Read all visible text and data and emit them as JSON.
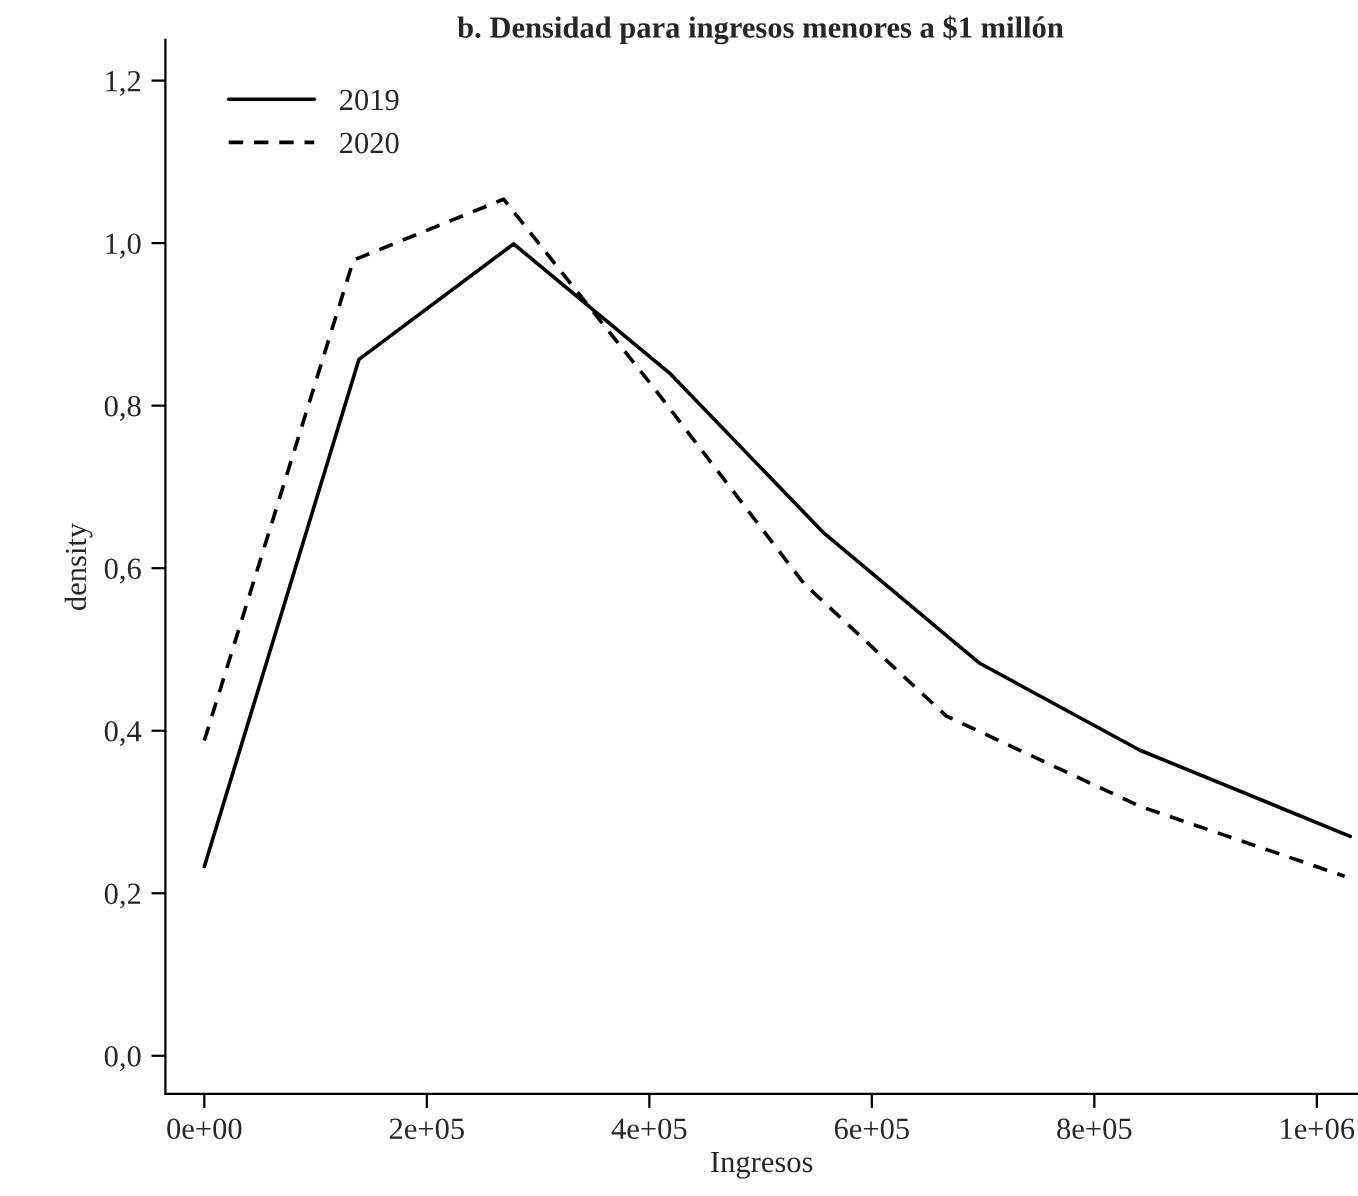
{
  "chart_data": {
    "type": "line",
    "title": "b. Densidad para ingresos menores a $1 millón",
    "xlabel": "Ingresos",
    "ylabel": "density",
    "series": [
      {
        "name": "2019",
        "color": "#000000",
        "line_style": "solid",
        "x": [
          0,
          139000,
          278000,
          419000,
          557000,
          697000,
          841000,
          1030000
        ],
        "values": [
          0.233,
          0.857,
          0.999,
          0.839,
          0.643,
          0.483,
          0.376,
          0.27
        ]
      },
      {
        "name": "2020",
        "color": "#000000",
        "line_style": "dashed",
        "x": [
          0,
          134000,
          269000,
          404000,
          539000,
          667000,
          841000,
          1025000
        ],
        "values": [
          0.388,
          0.979,
          1.054,
          0.822,
          0.581,
          0.418,
          0.307,
          0.221
        ]
      }
    ],
    "xlim": [
      -35000,
      1037000
    ],
    "ylim": [
      -0.047,
      1.25
    ],
    "xticks": [
      {
        "value": 0,
        "label": "0e+00"
      },
      {
        "value": 200000,
        "label": "2e+05"
      },
      {
        "value": 400000,
        "label": "4e+05"
      },
      {
        "value": 600000,
        "label": "6e+05"
      },
      {
        "value": 800000,
        "label": "8e+05"
      },
      {
        "value": 1000000,
        "label": "1e+06"
      }
    ],
    "yticks": [
      {
        "value": 0,
        "label": "0,0"
      },
      {
        "value": 0.2,
        "label": "0,2"
      },
      {
        "value": 0.4,
        "label": "0,4"
      },
      {
        "value": 0.6,
        "label": "0,6"
      },
      {
        "value": 0.8,
        "label": "0,8"
      },
      {
        "value": 1.0,
        "label": "1,0"
      },
      {
        "value": 1.2,
        "label": "1,2"
      }
    ],
    "grid": false,
    "legend": "top left",
    "marker": "none"
  }
}
